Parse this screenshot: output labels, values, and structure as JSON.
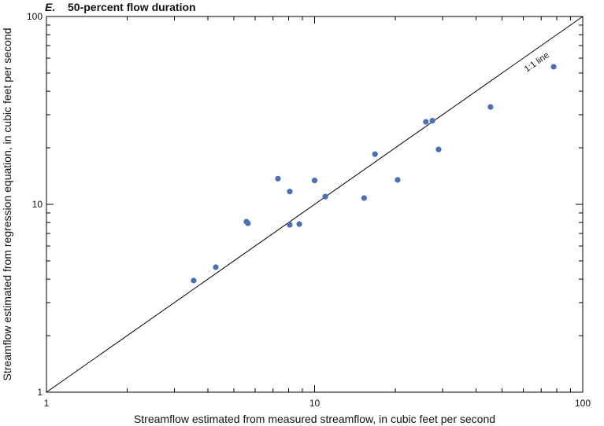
{
  "chart_data": {
    "type": "scatter",
    "panel_label": "E.",
    "title": "50-percent flow duration",
    "xlabel": "Streamflow estimated from measured streamflow, in cubic feet per second",
    "ylabel": "Streamflow estimated from regression equation, in cubic feet per second",
    "xscale": "log",
    "yscale": "log",
    "xlim": [
      1,
      100
    ],
    "ylim": [
      1,
      100
    ],
    "xticks": [
      "1",
      "10",
      "100"
    ],
    "yticks": [
      "1",
      "10",
      "100"
    ],
    "reference_line": {
      "label": "1:1 line",
      "from": [
        1,
        1
      ],
      "to": [
        100,
        100
      ]
    },
    "point_color": "#4a6fb5",
    "points": [
      {
        "x": 3.54,
        "y": 3.93
      },
      {
        "x": 4.28,
        "y": 4.63
      },
      {
        "x": 5.57,
        "y": 8.09
      },
      {
        "x": 5.64,
        "y": 7.93
      },
      {
        "x": 7.3,
        "y": 13.7
      },
      {
        "x": 8.08,
        "y": 11.7
      },
      {
        "x": 8.08,
        "y": 7.78
      },
      {
        "x": 8.77,
        "y": 7.85
      },
      {
        "x": 10.0,
        "y": 13.4
      },
      {
        "x": 10.96,
        "y": 11.0
      },
      {
        "x": 15.3,
        "y": 10.8
      },
      {
        "x": 16.8,
        "y": 18.5
      },
      {
        "x": 20.4,
        "y": 13.5
      },
      {
        "x": 26.0,
        "y": 27.5
      },
      {
        "x": 27.5,
        "y": 27.9
      },
      {
        "x": 29.0,
        "y": 19.6
      },
      {
        "x": 45.3,
        "y": 33.0
      },
      {
        "x": 77.9,
        "y": 54.0
      }
    ]
  }
}
